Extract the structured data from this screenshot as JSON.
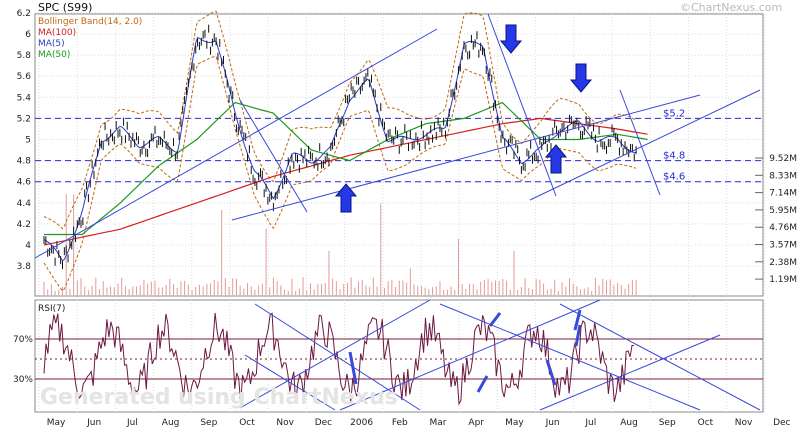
{
  "header": {
    "title": "SPC (S99)",
    "watermark": "©ChartNexus.com"
  },
  "watermark_big": "Generated using ChartNexus",
  "chart_data": [
    {
      "type": "line",
      "title": "SPC (S99)",
      "x_labels": [
        "May",
        "Jun",
        "Jul",
        "Aug",
        "Sep",
        "Oct",
        "Nov",
        "Dec",
        "2006",
        "Feb",
        "Mar",
        "Apr",
        "May",
        "Jun",
        "Jul",
        "Aug",
        "Sep",
        "Oct",
        "Nov",
        "Dec"
      ],
      "y_ticks": [
        "6.2",
        "6",
        "5.8",
        "5.6",
        "5.4",
        "5.2",
        "5",
        "4.8",
        "4.6",
        "4.4",
        "4.2",
        "4",
        "3.8"
      ],
      "ylim": [
        3.6,
        6.2
      ],
      "volume_ticks": [
        "9.52M",
        "8.33M",
        "7.14M",
        "5.95M",
        "4.76M",
        "3.57M",
        "2.38M",
        "1.19M"
      ],
      "legend": [
        {
          "name": "Bollinger Band(14, 2.0)",
          "color": "#c06a10"
        },
        {
          "name": "MA(100)",
          "color": "#d62020"
        },
        {
          "name": "MA(5)",
          "color": "#2c3cc8"
        },
        {
          "name": "MA(50)",
          "color": "#1c9a1c"
        }
      ],
      "levels": [
        {
          "label": "$5.2",
          "value": 5.2
        },
        {
          "label": "$4.8",
          "value": 4.8
        },
        {
          "label": "$4.6",
          "value": 4.6
        }
      ],
      "series": [
        {
          "name": "Price",
          "x": [
            0,
            0.5,
            1,
            1.5,
            2,
            2.5,
            3,
            3.5,
            4,
            4.5,
            5,
            5.5,
            6,
            6.5,
            7,
            7.5,
            8,
            8.5,
            9,
            9.5,
            10,
            10.5,
            11,
            11.5,
            12,
            12.5,
            13,
            13.5,
            14,
            14.5,
            15,
            15.5,
            16,
            16.5,
            17,
            17.5,
            18,
            18.5
          ],
          "values": [
            4.05,
            3.85,
            4.3,
            5.0,
            5.1,
            4.95,
            5.0,
            4.9,
            5.95,
            5.95,
            5.25,
            4.7,
            4.45,
            4.85,
            4.8,
            4.9,
            5.4,
            5.55,
            5.0,
            5.0,
            5.05,
            5.1,
            5.9,
            5.9,
            5.0,
            4.8,
            4.9,
            5.1,
            5.15,
            5.0,
            5.0,
            4.88,
            null,
            null,
            null,
            null,
            null,
            null
          ]
        },
        {
          "name": "MA(100)",
          "x": [
            0,
            2,
            4,
            6,
            8,
            10,
            12,
            13,
            14,
            15,
            15.8
          ],
          "values": [
            4.0,
            4.15,
            4.4,
            4.65,
            4.85,
            5.0,
            5.15,
            5.2,
            5.15,
            5.1,
            5.05
          ]
        },
        {
          "name": "MA(50)",
          "x": [
            0,
            1,
            2,
            3,
            4,
            5,
            6,
            7,
            8,
            9,
            10,
            11,
            12,
            13,
            14,
            15,
            15.8
          ],
          "values": [
            4.1,
            4.1,
            4.4,
            4.75,
            5.0,
            5.35,
            5.25,
            4.9,
            4.8,
            5.0,
            5.15,
            5.2,
            5.35,
            5.0,
            5.0,
            5.05,
            5.0
          ]
        }
      ]
    },
    {
      "type": "line",
      "title": "RSI(7)",
      "y_ticks": [
        "70%",
        "30%"
      ],
      "ylim": [
        0,
        100
      ],
      "levels": [
        70,
        50,
        30
      ]
    }
  ]
}
